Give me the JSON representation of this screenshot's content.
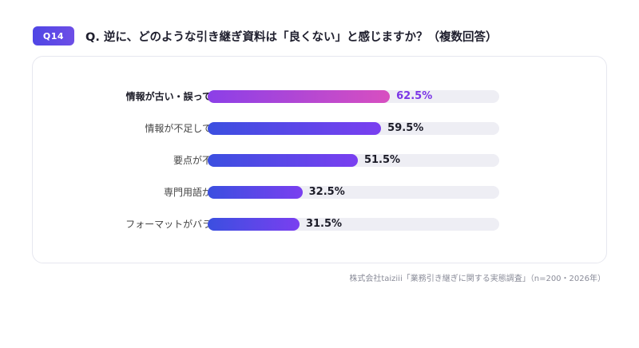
{
  "header": {
    "badge": "Q14",
    "question": "Q. 逆に、どのような引き継ぎ資料は「良くない」と感じますか？（複数回答）"
  },
  "chart_data": {
    "type": "bar",
    "orientation": "horizontal",
    "categories": [
      "情報が古い・誤っている",
      "情報が不足している",
      "要点が不明確",
      "専門用語が多い",
      "フォーマットがバラバラ"
    ],
    "values": [
      62.5,
      59.5,
      51.5,
      32.5,
      31.5
    ],
    "value_labels": [
      "62.5%",
      "59.5%",
      "51.5%",
      "32.5%",
      "31.5%"
    ],
    "xlim": [
      0,
      100
    ],
    "highlight_index": 0,
    "colors": {
      "bar": "#4f46e5",
      "highlight": "#c84fd0",
      "highlight_text": "#7b36e6",
      "track": "#eeeef4"
    }
  },
  "footer": {
    "source": "株式会社taiziii「業務引き継ぎに関する実態調査」（n=200・2026年）"
  }
}
